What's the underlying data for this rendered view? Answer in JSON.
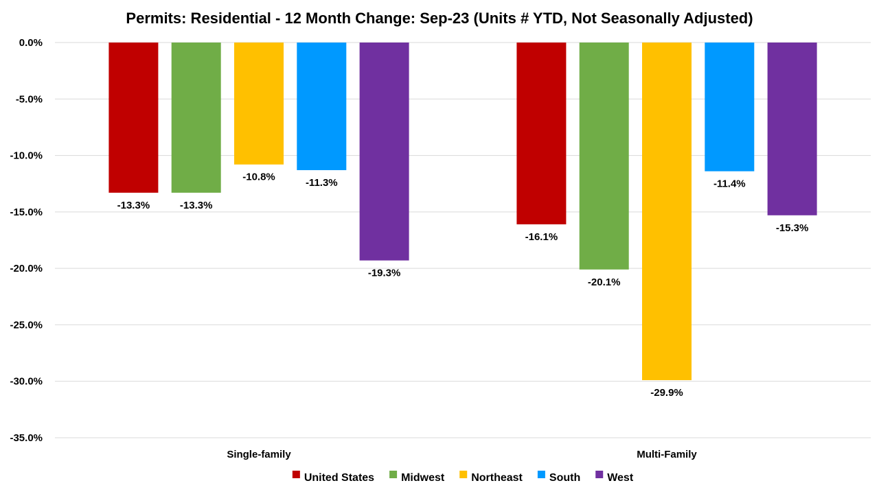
{
  "chart_data": {
    "type": "bar",
    "title": "Permits: Residential - 12 Month Change:  Sep-23 (Units # YTD, Not Seasonally Adjusted)",
    "xlabel": "",
    "ylabel": "",
    "categories": [
      "Single-family",
      "Multi-Family"
    ],
    "series": [
      {
        "name": "United States",
        "color": "#c00000",
        "values": [
          -13.3,
          -16.1
        ],
        "labels": [
          "-13.3%",
          "-16.1%"
        ]
      },
      {
        "name": "Midwest",
        "color": "#70ad47",
        "values": [
          -13.3,
          -20.1
        ],
        "labels": [
          "-13.3%",
          "-20.1%"
        ]
      },
      {
        "name": "Northeast",
        "color": "#ffc000",
        "values": [
          -10.8,
          -29.9
        ],
        "labels": [
          "-10.8%",
          "-29.9%"
        ]
      },
      {
        "name": "South",
        "color": "#0099ff",
        "values": [
          -11.3,
          -11.4
        ],
        "labels": [
          "-11.3%",
          "-11.4%"
        ]
      },
      {
        "name": "West",
        "color": "#7030a0",
        "values": [
          -19.3,
          -15.3
        ],
        "labels": [
          "-19.3%",
          "-15.3%"
        ]
      }
    ],
    "ylim": [
      -35,
      0
    ],
    "yticks": [
      0,
      -5,
      -10,
      -15,
      -20,
      -25,
      -30,
      -35
    ],
    "ytick_labels": [
      "0.0%",
      "-5.0%",
      "-10.0%",
      "-15.0%",
      "-20.0%",
      "-25.0%",
      "-30.0%",
      "-35.0%"
    ],
    "grid": true,
    "legend_position": "bottom"
  }
}
